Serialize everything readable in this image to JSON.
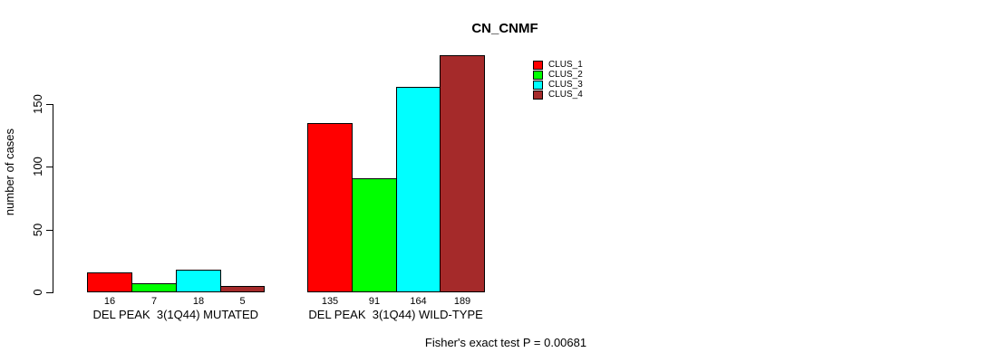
{
  "figure": {
    "title": "CN_CNMF",
    "caption": "Fisher's exact test P = 0.00681"
  },
  "chart_data": {
    "type": "bar",
    "title": "CN_CNMF",
    "xlabel": "",
    "ylabel": "number of cases",
    "ylim": [
      0,
      195
    ],
    "yticks": [
      0,
      50,
      100,
      150
    ],
    "grid": false,
    "bar_outline_color": "#000000",
    "value_labels_shown": true,
    "legend_position": "upper-right-inside",
    "categories": [
      "DEL PEAK  3(1Q44) MUTATED",
      "DEL PEAK  3(1Q44) WILD-TYPE"
    ],
    "series": [
      {
        "name": "CLUS_1",
        "color": "#ff0000",
        "values": [
          16,
          135
        ]
      },
      {
        "name": "CLUS_2",
        "color": "#00ff00",
        "values": [
          7,
          91
        ]
      },
      {
        "name": "CLUS_3",
        "color": "#00ffff",
        "values": [
          18,
          164
        ]
      },
      {
        "name": "CLUS_4",
        "color": "#a52a2a",
        "values": [
          5,
          189
        ]
      }
    ],
    "annotation": "Fisher's exact test P = 0.00681"
  }
}
